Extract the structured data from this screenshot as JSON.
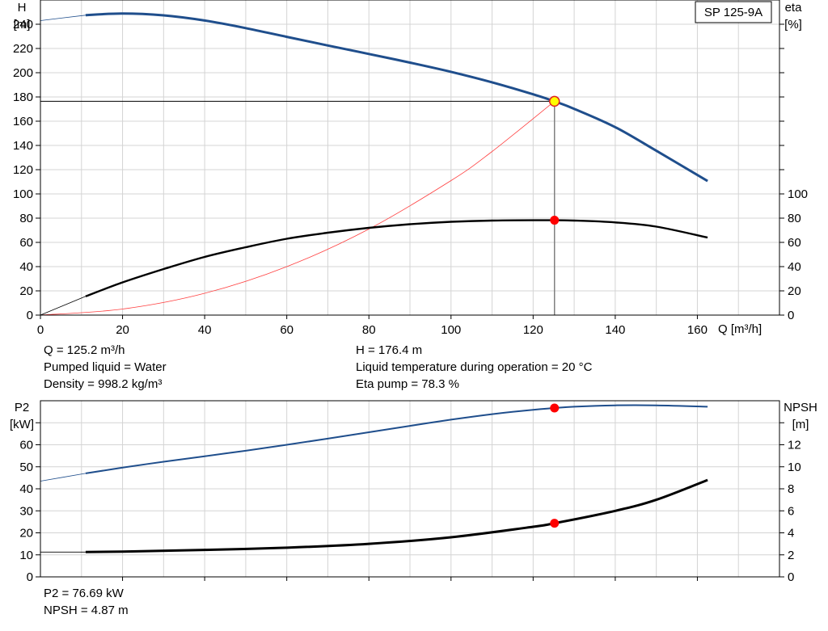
{
  "chart_data": [
    {
      "type": "line",
      "title": "SP 125-9A",
      "xlabel": "Q [m³/h]",
      "xlim": [
        0,
        180
      ],
      "xticks": [
        "0",
        "20",
        "40",
        "60",
        "80",
        "100",
        "120",
        "140",
        "160"
      ],
      "y_left": {
        "label": "H",
        "unit": "[m]",
        "ylim": [
          0,
          260
        ],
        "ticks": [
          "0",
          "20",
          "40",
          "60",
          "80",
          "100",
          "120",
          "140",
          "160",
          "180",
          "200",
          "220",
          "240"
        ]
      },
      "y_right": {
        "label": "eta",
        "unit": "[%]",
        "ylim": [
          0,
          260
        ],
        "ticks": [
          "0",
          "20",
          "40",
          "60",
          "80",
          "100"
        ]
      },
      "grid": true,
      "series": [
        {
          "axis": "left",
          "color": "#1f4e8c",
          "extension": {
            "x": [
              0,
              11
            ],
            "y": [
              243,
              247.5
            ]
          },
          "x": [
            11,
            20,
            30,
            40,
            50,
            60,
            70,
            80,
            90,
            100,
            110,
            120,
            125.2,
            130,
            140,
            150,
            162.5
          ],
          "y": [
            247.5,
            248.8,
            247.3,
            243.1,
            236.8,
            229.6,
            222.5,
            215.5,
            208.3,
            200.7,
            192.1,
            182.2,
            176.4,
            170.2,
            155.1,
            135.6,
            110.6
          ]
        },
        {
          "axis": "right",
          "color": "#000000",
          "extension": {
            "x": [
              0,
              11
            ],
            "y": [
              0,
              15.5
            ]
          },
          "x": [
            11,
            20,
            30,
            40,
            50,
            60,
            70,
            80,
            90,
            100,
            110,
            120,
            125.2,
            130,
            140,
            150,
            162.5
          ],
          "y": [
            15.5,
            27,
            38,
            48,
            56,
            63,
            68,
            72,
            75,
            77,
            78,
            78.3,
            78.3,
            78,
            76.5,
            73,
            64
          ]
        }
      ],
      "system_curve": {
        "color": "#ff4040",
        "x": [
          0,
          20,
          40,
          60,
          80,
          100,
          110,
          125.2
        ],
        "y": [
          0,
          5,
          18,
          40,
          71,
          111,
          135,
          176.4
        ]
      },
      "operating_point": {
        "Q": 125.2,
        "H": 176.4,
        "eta": 78.3
      }
    },
    {
      "type": "line",
      "xlim": [
        0,
        180
      ],
      "y_left": {
        "label": "P2",
        "unit": "[kW]",
        "ylim": [
          0,
          80
        ],
        "ticks": [
          "0",
          "10",
          "20",
          "30",
          "40",
          "50",
          "60"
        ]
      },
      "y_right": {
        "label": "NPSH",
        "unit": "[m]",
        "ylim": [
          0,
          16
        ],
        "ticks": [
          "0",
          "2",
          "4",
          "6",
          "8",
          "10",
          "12"
        ]
      },
      "grid": true,
      "series": [
        {
          "axis": "left",
          "color": "#1f4e8c",
          "extension": {
            "x": [
              0,
              11
            ],
            "y": [
              43.5,
              47
            ]
          },
          "x": [
            11,
            20,
            30,
            40,
            50,
            60,
            70,
            80,
            90,
            100,
            110,
            120,
            125.2,
            130,
            140,
            150,
            162.5
          ],
          "y": [
            47,
            49.6,
            52.3,
            54.8,
            57.3,
            60.0,
            62.8,
            65.7,
            68.6,
            71.4,
            73.9,
            75.9,
            76.69,
            77.3,
            77.9,
            77.9,
            77.3
          ]
        },
        {
          "axis": "right",
          "color": "#000000",
          "extension": {
            "x": [
              0,
              11
            ],
            "y": [
              2.25,
              2.25
            ]
          },
          "x": [
            11,
            20,
            40,
            60,
            80,
            100,
            120,
            125.2,
            140,
            150,
            162.5
          ],
          "y": [
            2.25,
            2.3,
            2.45,
            2.65,
            3.0,
            3.6,
            4.55,
            4.87,
            6.0,
            7.0,
            8.8
          ]
        }
      ],
      "operating_point": {
        "Q": 125.2,
        "P2": 76.69,
        "NPSH": 4.87
      }
    }
  ],
  "info_top": {
    "q": "Q = 125.2 m³/h",
    "liquid": "Pumped liquid = Water",
    "density": "Density = 998.2 kg/m³",
    "h": "H = 176.4 m",
    "temp": "Liquid temperature during operation = 20 °C",
    "eta": "Eta pump = 78.3 %"
  },
  "info_bottom": {
    "p2": "P2 = 76.69 kW",
    "npsh": "NPSH = 4.87 m"
  }
}
